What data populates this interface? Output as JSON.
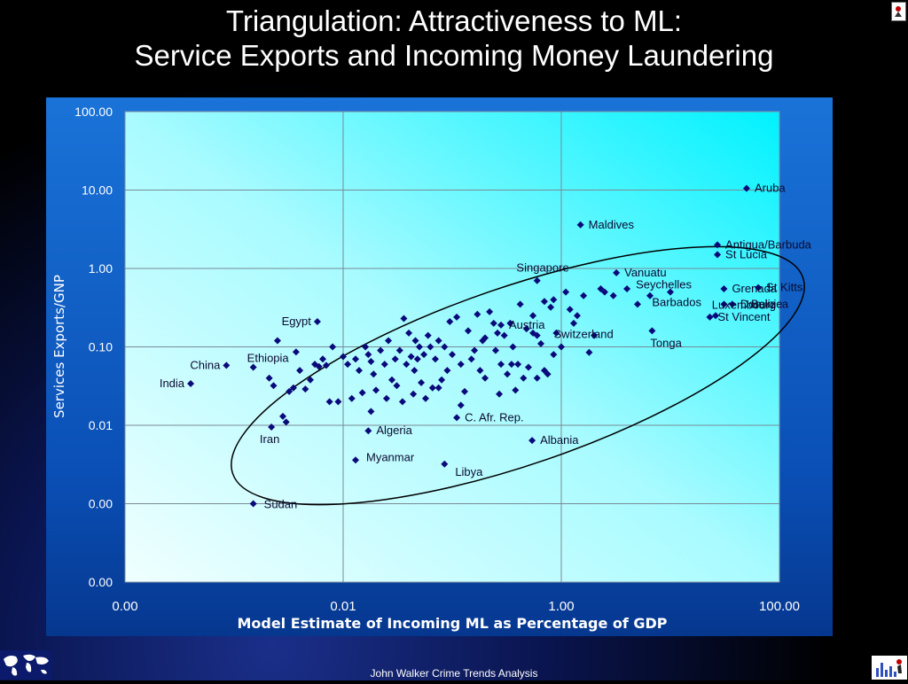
{
  "slide": {
    "title_line1": "Triangulation: Attractiveness to ML:",
    "title_line2": "Service Exports and Incoming Money Laundering",
    "footer": "John Walker Crime Trends Analysis"
  },
  "colors": {
    "marker": "#0a0a7a",
    "plot_bg_top_right": "#00ffff",
    "plot_bg_bottom_left": "#e8ffff",
    "panel_bg": "#1060d0"
  },
  "icons": [
    "globe-map-icon",
    "bar-chart-logo-icon",
    "page-corner-icon"
  ],
  "chart_data": {
    "type": "scatter",
    "title": "",
    "xlabel": "Model Estimate of Incoming ML as Percentage of GDP",
    "ylabel": "Services Exports/GNP",
    "x_scale": "log",
    "y_scale": "log",
    "xlim": [
      0.0001,
      100
    ],
    "ylim": [
      0.0001,
      100
    ],
    "x_ticks": [
      0.0001,
      0.01,
      1,
      100
    ],
    "x_tick_labels": [
      "0.00",
      "0.01",
      "1.00",
      "100.00"
    ],
    "y_ticks": [
      0.0001,
      0.001,
      0.01,
      0.1,
      1,
      10,
      100
    ],
    "y_tick_labels": [
      "0.00",
      "0.00",
      "0.01",
      "0.10",
      "1.00",
      "10.00",
      "100.00"
    ],
    "grid": true,
    "labeled_points": [
      {
        "label": "Aruba",
        "x": 50,
        "y": 10.5
      },
      {
        "label": "Maldives",
        "x": 1.5,
        "y": 3.6
      },
      {
        "label": "Antigua/Barbuda",
        "x": 27,
        "y": 2.0
      },
      {
        "label": "St Lucia",
        "x": 27,
        "y": 1.5
      },
      {
        "label": "Singapore",
        "x": 0.6,
        "y": 0.7
      },
      {
        "label": "Vanuatu",
        "x": 3.2,
        "y": 0.88
      },
      {
        "label": "Seychelles",
        "x": 10,
        "y": 0.5
      },
      {
        "label": "Grenada",
        "x": 31,
        "y": 0.55
      },
      {
        "label": "St Kitts",
        "x": 64,
        "y": 0.57
      },
      {
        "label": "Barbados",
        "x": 6.5,
        "y": 0.45
      },
      {
        "label": "Belize",
        "x": 31,
        "y": 0.35
      },
      {
        "label": "Dominica",
        "x": 37,
        "y": 0.35
      },
      {
        "label": "Egypt",
        "x": 0.0058,
        "y": 0.21
      },
      {
        "label": "Luxembourg",
        "x": 26,
        "y": 0.25
      },
      {
        "label": "St Vincent",
        "x": 23,
        "y": 0.24
      },
      {
        "label": "Austria",
        "x": 0.28,
        "y": 0.19
      },
      {
        "label": "Switzerland",
        "x": 0.6,
        "y": 0.14
      },
      {
        "label": "Tonga",
        "x": 6.8,
        "y": 0.16
      },
      {
        "label": "China",
        "x": 0.00085,
        "y": 0.058
      },
      {
        "label": "Ethiopia",
        "x": 0.0015,
        "y": 0.055
      },
      {
        "label": "India",
        "x": 0.0004,
        "y": 0.034
      },
      {
        "label": "C. Afr. Rep.",
        "x": 0.11,
        "y": 0.0125
      },
      {
        "label": "Iran",
        "x": 0.0022,
        "y": 0.0095
      },
      {
        "label": "Algeria",
        "x": 0.017,
        "y": 0.0085
      },
      {
        "label": "Albania",
        "x": 0.54,
        "y": 0.0064
      },
      {
        "label": "Myanmar",
        "x": 0.013,
        "y": 0.0036
      },
      {
        "label": "Libya",
        "x": 0.085,
        "y": 0.0032
      },
      {
        "label": "Sudan",
        "x": 0.0015,
        "y": 0.001
      }
    ],
    "points": [
      [
        0.0021,
        0.04
      ],
      [
        0.0023,
        0.032
      ],
      [
        0.0025,
        0.12
      ],
      [
        0.0028,
        0.013
      ],
      [
        0.003,
        0.011
      ],
      [
        0.0032,
        0.027
      ],
      [
        0.0035,
        0.03
      ],
      [
        0.0037,
        0.086
      ],
      [
        0.004,
        0.05
      ],
      [
        0.0045,
        0.029
      ],
      [
        0.005,
        0.038
      ],
      [
        0.0055,
        0.06
      ],
      [
        0.006,
        0.056
      ],
      [
        0.0065,
        0.07
      ],
      [
        0.007,
        0.058
      ],
      [
        0.0075,
        0.02
      ],
      [
        0.008,
        0.1
      ],
      [
        0.009,
        0.02
      ],
      [
        0.01,
        0.075
      ],
      [
        0.011,
        0.06
      ],
      [
        0.012,
        0.022
      ],
      [
        0.013,
        0.07
      ],
      [
        0.014,
        0.05
      ],
      [
        0.015,
        0.026
      ],
      [
        0.016,
        0.1
      ],
      [
        0.017,
        0.08
      ],
      [
        0.018,
        0.065
      ],
      [
        0.019,
        0.045
      ],
      [
        0.02,
        0.028
      ],
      [
        0.022,
        0.09
      ],
      [
        0.024,
        0.06
      ],
      [
        0.025,
        0.022
      ],
      [
        0.026,
        0.12
      ],
      [
        0.028,
        0.038
      ],
      [
        0.03,
        0.07
      ],
      [
        0.031,
        0.032
      ],
      [
        0.033,
        0.09
      ],
      [
        0.035,
        0.02
      ],
      [
        0.036,
        0.23
      ],
      [
        0.038,
        0.06
      ],
      [
        0.04,
        0.15
      ],
      [
        0.042,
        0.075
      ],
      [
        0.044,
        0.025
      ],
      [
        0.046,
        0.12
      ],
      [
        0.048,
        0.07
      ],
      [
        0.05,
        0.1
      ],
      [
        0.052,
        0.035
      ],
      [
        0.055,
        0.08
      ],
      [
        0.057,
        0.022
      ],
      [
        0.06,
        0.14
      ],
      [
        0.063,
        0.1
      ],
      [
        0.066,
        0.03
      ],
      [
        0.07,
        0.07
      ],
      [
        0.075,
        0.12
      ],
      [
        0.08,
        0.038
      ],
      [
        0.085,
        0.1
      ],
      [
        0.09,
        0.05
      ],
      [
        0.095,
        0.21
      ],
      [
        0.1,
        0.08
      ],
      [
        0.11,
        0.24
      ],
      [
        0.12,
        0.06
      ],
      [
        0.13,
        0.027
      ],
      [
        0.14,
        0.16
      ],
      [
        0.15,
        0.07
      ],
      [
        0.16,
        0.09
      ],
      [
        0.17,
        0.26
      ],
      [
        0.18,
        0.05
      ],
      [
        0.19,
        0.12
      ],
      [
        0.2,
        0.04
      ],
      [
        0.22,
        0.28
      ],
      [
        0.24,
        0.2
      ],
      [
        0.25,
        0.09
      ],
      [
        0.26,
        0.15
      ],
      [
        0.27,
        0.025
      ],
      [
        0.28,
        0.06
      ],
      [
        0.3,
        0.14
      ],
      [
        0.32,
        0.045
      ],
      [
        0.34,
        0.2
      ],
      [
        0.36,
        0.1
      ],
      [
        0.38,
        0.028
      ],
      [
        0.4,
        0.06
      ],
      [
        0.42,
        0.35
      ],
      [
        0.45,
        0.04
      ],
      [
        0.48,
        0.17
      ],
      [
        0.5,
        0.055
      ],
      [
        0.55,
        0.25
      ],
      [
        0.6,
        0.04
      ],
      [
        0.65,
        0.11
      ],
      [
        0.7,
        0.38
      ],
      [
        0.75,
        0.045
      ],
      [
        0.8,
        0.32
      ],
      [
        0.85,
        0.08
      ],
      [
        0.9,
        0.15
      ],
      [
        1.0,
        0.1
      ],
      [
        1.1,
        0.5
      ],
      [
        1.2,
        0.3
      ],
      [
        1.4,
        0.25
      ],
      [
        1.6,
        0.45
      ],
      [
        1.8,
        0.085
      ],
      [
        2.0,
        0.14
      ],
      [
        2.3,
        0.55
      ],
      [
        2.5,
        0.5
      ],
      [
        3.0,
        0.45
      ],
      [
        4.0,
        0.55
      ],
      [
        5.0,
        0.35
      ],
      [
        0.045,
        0.05
      ],
      [
        0.075,
        0.03
      ],
      [
        0.12,
        0.018
      ],
      [
        0.2,
        0.13
      ],
      [
        0.35,
        0.06
      ],
      [
        0.55,
        0.15
      ],
      [
        0.7,
        0.05
      ],
      [
        0.85,
        0.4
      ],
      [
        1.3,
        0.2
      ],
      [
        0.018,
        0.015
      ]
    ]
  }
}
